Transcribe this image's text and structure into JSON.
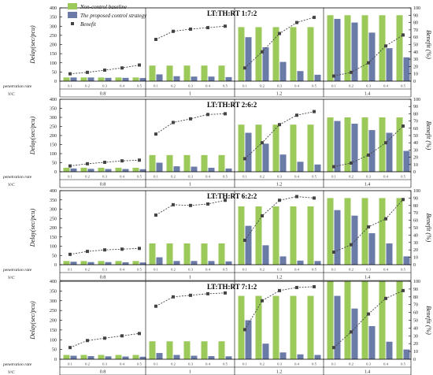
{
  "chart_data": {
    "type": "bar",
    "colors": {
      "baseline": "#9cca5a",
      "proposed": "#6b7ba8",
      "benefit": "#444444"
    },
    "legend": {
      "placement": "top-left of first panel",
      "entries": [
        "Non-control baseline",
        "The proposed control strategy",
        "Benefit"
      ]
    },
    "shared": {
      "x_group_label": "V/C",
      "x_sub_label": "penetration rate",
      "groups": [
        "0.8",
        "1",
        "1.2",
        "1.4"
      ],
      "sub_categories": [
        "0.1",
        "0.2",
        "0.3",
        "0.4",
        "0.5"
      ],
      "ylabel_left": "Delay(sec/pcu)",
      "ylabel_right": "Benefit (%)",
      "ylim_left": [
        0,
        400
      ],
      "ylim_right": [
        0,
        100
      ],
      "yticks_left": [
        "0",
        "50",
        "100",
        "150",
        "200",
        "250",
        "300",
        "350",
        "400"
      ],
      "yticks_right": [
        "0",
        "10",
        "20",
        "30",
        "40",
        "50",
        "60",
        "70",
        "80",
        "90",
        "100"
      ]
    },
    "panels": [
      {
        "title": "LT:TH:RT 1:7:2",
        "series": [
          {
            "name": "Non-control baseline",
            "values": [
              20,
              20,
              20,
              20,
              20,
              85,
              85,
              85,
              85,
              85,
              295,
              295,
              295,
              295,
              295,
              360,
              360,
              360,
              360,
              360
            ]
          },
          {
            "name": "The proposed control strategy",
            "values": [
              20,
              20,
              18,
              18,
              17,
              37,
              27,
              25,
              25,
              22,
              240,
              185,
              105,
              55,
              35,
              340,
              320,
              265,
              180,
              130
            ]
          },
          {
            "name": "Benefit",
            "values": [
              10,
              12,
              15,
              18,
              22,
              57,
              68,
              71,
              73,
              75,
              18,
              40,
              65,
              80,
              87,
              7,
              12,
              25,
              48,
              63
            ]
          }
        ]
      },
      {
        "title": "LT:TH:RT 2:6:2",
        "series": [
          {
            "name": "Non-control baseline",
            "values": [
              22,
              22,
              22,
              22,
              22,
              92,
              92,
              92,
              92,
              92,
              260,
              260,
              260,
              260,
              260,
              300,
              300,
              300,
              300,
              300
            ]
          },
          {
            "name": "The proposed control strategy",
            "values": [
              18,
              16,
              15,
              15,
              14,
              50,
              30,
              28,
              22,
              18,
              215,
              155,
              95,
              55,
              40,
              280,
              265,
              230,
              215,
              115
            ]
          },
          {
            "name": "Benefit",
            "values": [
              8,
              11,
              13,
              15,
              16,
              52,
              68,
              73,
              79,
              80,
              18,
              40,
              65,
              78,
              83,
              7,
              12,
              23,
              40,
              63
            ]
          }
        ]
      },
      {
        "title": "LT:TH:RT 6:2:2",
        "series": [
          {
            "name": "Non-control baseline",
            "values": [
              20,
              20,
              20,
              20,
              20,
              115,
              115,
              115,
              115,
              115,
              315,
              315,
              315,
              315,
              315,
              360,
              360,
              360,
              360,
              360
            ]
          },
          {
            "name": "The proposed control strategy",
            "values": [
              16,
              14,
              14,
              13,
              12,
              40,
              20,
              20,
              20,
              18,
              210,
              105,
              45,
              22,
              20,
              295,
              265,
              170,
              115,
              45
            ]
          },
          {
            "name": "Benefit",
            "values": [
              14,
              18,
              20,
              21,
              22,
              67,
              81,
              80,
              82,
              87,
              33,
              66,
              87,
              92,
              90,
              17,
              27,
              51,
              62,
              88
            ]
          }
        ]
      },
      {
        "title": "LT:TH:RT 7:1:2",
        "series": [
          {
            "name": "Non-control baseline",
            "values": [
              22,
              22,
              22,
              22,
              22,
              92,
              92,
              92,
              92,
              92,
              325,
              325,
              325,
              325,
              325,
              400,
              400,
              400,
              400,
              400
            ]
          },
          {
            "name": "The proposed control strategy",
            "values": [
              18,
              16,
              15,
              14,
              13,
              32,
              22,
              18,
              16,
              15,
              200,
              80,
              35,
              25,
              22,
              325,
              260,
              170,
              90,
              50
            ]
          },
          {
            "name": "Benefit",
            "values": [
              15,
              24,
              27,
              30,
              33,
              68,
              80,
              82,
              84,
              85,
              38,
              75,
              88,
              92,
              93,
              15,
              35,
              58,
              78,
              88
            ]
          }
        ]
      }
    ]
  }
}
